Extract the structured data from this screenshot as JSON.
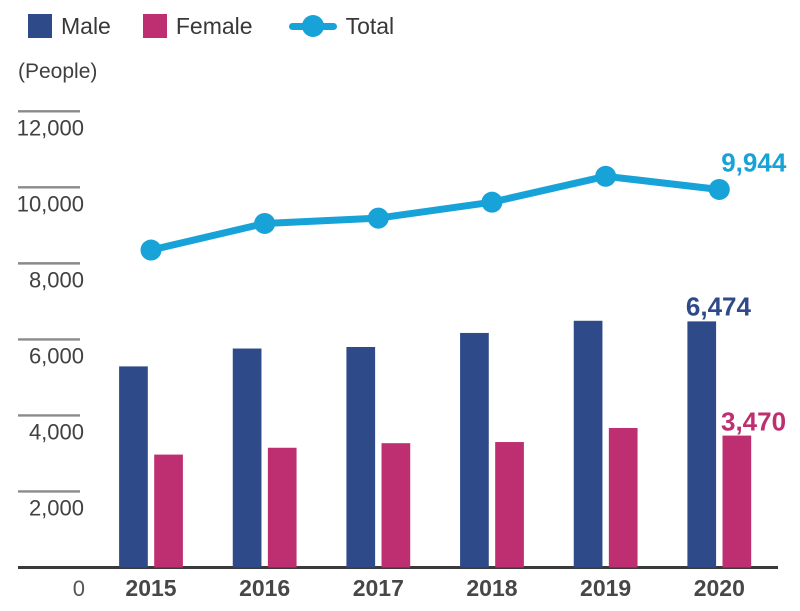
{
  "legend": {
    "items": [
      {
        "label": "Male",
        "marker": "square",
        "color_key": "male"
      },
      {
        "label": "Female",
        "marker": "square",
        "color_key": "female"
      },
      {
        "label": "Total",
        "marker": "line-marker",
        "color_key": "total"
      }
    ]
  },
  "chart_data": {
    "type": "bar+line",
    "title": "",
    "unit_label": "(People)",
    "categories": [
      "2015",
      "2016",
      "2017",
      "2018",
      "2019",
      "2020"
    ],
    "series": [
      {
        "name": "Male",
        "type": "bar",
        "values": [
          5290,
          5760,
          5800,
          6170,
          6490,
          6474
        ]
      },
      {
        "name": "Female",
        "type": "bar",
        "values": [
          2970,
          3150,
          3270,
          3300,
          3670,
          3470
        ]
      },
      {
        "name": "Total",
        "type": "line",
        "values": [
          8350,
          9050,
          9190,
          9610,
          10290,
          9944
        ]
      }
    ],
    "annotations": [
      {
        "series": "Total",
        "category": "2020",
        "label": "9,944"
      },
      {
        "series": "Male",
        "category": "2020",
        "label": "6,474"
      },
      {
        "series": "Female",
        "category": "2020",
        "label": "3,470"
      }
    ],
    "xlabel": "",
    "ylabel": "(People)",
    "ylim": [
      0,
      12000
    ],
    "yticks": [
      {
        "value": 12000,
        "label": "12,000"
      },
      {
        "value": 10000,
        "label": "10,000"
      },
      {
        "value": 8000,
        "label": "8,000"
      },
      {
        "value": 6000,
        "label": "6,000"
      },
      {
        "value": 4000,
        "label": "4,000"
      },
      {
        "value": 2000,
        "label": "2,000"
      },
      {
        "value": 0,
        "label": "0"
      }
    ],
    "colors": {
      "male": "#2F4A88",
      "female": "#BD2F70",
      "total": "#17A3D8",
      "axis_line": "#3A3A3A",
      "tick_dash": "#8A8A8A"
    },
    "legend_position": "top-left",
    "grid": "short-dash-ticks-left-only"
  }
}
